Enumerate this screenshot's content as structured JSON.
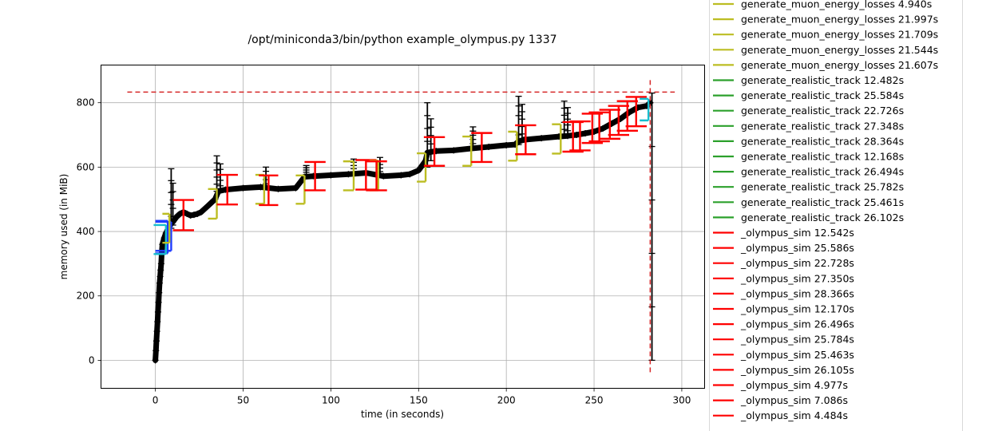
{
  "chart_data": {
    "type": "line",
    "title": "/opt/miniconda3/bin/python example_olympus.py 1337",
    "xlabel": "time (in seconds)",
    "ylabel": "memory used (in MiB)",
    "xlim": [
      -31,
      313
    ],
    "ylim": [
      -87,
      917
    ],
    "x_ticks": [
      0,
      50,
      100,
      150,
      200,
      250,
      300
    ],
    "y_ticks": [
      0,
      200,
      400,
      600,
      800
    ],
    "grid": true,
    "legend_placement": "right, outside plot",
    "max_memory_line": {
      "value": 833,
      "x_start": -16,
      "x_end": 296,
      "vertical_x": 282,
      "color": "#d62728"
    },
    "memory_series": {
      "name": "memory",
      "color": "#000000",
      "marker": "+",
      "x": [
        0,
        0.3,
        0.6,
        0.9,
        1.2,
        1.5,
        1.8,
        2.1,
        2.4,
        2.7,
        3,
        3.3,
        3.6,
        4,
        5,
        6,
        7,
        8,
        9,
        10,
        12,
        14,
        16,
        18,
        20,
        22,
        24,
        26,
        28,
        30,
        32,
        34,
        36,
        40,
        50,
        60,
        70,
        80,
        85,
        90,
        100,
        110,
        120,
        130,
        140,
        145,
        150,
        152,
        154,
        155,
        160,
        170,
        180,
        190,
        200,
        205,
        207,
        210,
        220,
        230,
        235,
        240,
        245,
        250,
        255,
        260,
        265,
        270,
        275,
        280,
        282
      ],
      "y": [
        0,
        30,
        60,
        90,
        120,
        150,
        180,
        210,
        240,
        260,
        280,
        300,
        330,
        360,
        380,
        395,
        405,
        415,
        425,
        430,
        445,
        455,
        460,
        455,
        450,
        452,
        455,
        460,
        470,
        480,
        490,
        500,
        525,
        530,
        535,
        538,
        532,
        535,
        570,
        572,
        575,
        578,
        582,
        572,
        575,
        578,
        590,
        605,
        620,
        645,
        650,
        652,
        658,
        663,
        668,
        670,
        680,
        685,
        690,
        695,
        697,
        700,
        705,
        710,
        720,
        735,
        750,
        770,
        785,
        790,
        800
      ]
    },
    "spikes": [
      {
        "x": 9,
        "y0": 410,
        "y1": 595
      },
      {
        "x": 10,
        "y0": 420,
        "y1": 550
      },
      {
        "x": 35,
        "y0": 525,
        "y1": 635
      },
      {
        "x": 37,
        "y0": 525,
        "y1": 610
      },
      {
        "x": 63,
        "y0": 535,
        "y1": 600
      },
      {
        "x": 86,
        "y0": 570,
        "y1": 605
      },
      {
        "x": 113,
        "y0": 575,
        "y1": 625
      },
      {
        "x": 128,
        "y0": 575,
        "y1": 630
      },
      {
        "x": 155,
        "y0": 600,
        "y1": 800
      },
      {
        "x": 157,
        "y0": 620,
        "y1": 750
      },
      {
        "x": 181,
        "y0": 660,
        "y1": 725
      },
      {
        "x": 207,
        "y0": 670,
        "y1": 820
      },
      {
        "x": 209,
        "y0": 680,
        "y1": 795
      },
      {
        "x": 233,
        "y0": 695,
        "y1": 805
      },
      {
        "x": 235,
        "y0": 695,
        "y1": 785
      },
      {
        "x": 283,
        "y0": 0,
        "y1": 830
      }
    ],
    "brackets": [
      {
        "name": "blue",
        "color": "#1f3cff",
        "x0": 0,
        "x1": 7,
        "lo": 332,
        "hi": 433,
        "tick": 5.5,
        "series": "blue"
      },
      {
        "name": "blue2",
        "color": "#1f3cff",
        "x0": 0,
        "x1": 9,
        "lo": 340,
        "hi": 430,
        "tick": 6,
        "series": "blue"
      },
      {
        "name": "cyan",
        "color": "#17becf",
        "x0": -1,
        "x1": 6,
        "lo": 330,
        "hi": 420,
        "tick": 4.5,
        "series": "cyan"
      },
      {
        "name": "olive",
        "color": "#bcbd22",
        "x0": 4,
        "x1": 8,
        "lo": 365,
        "hi": 455,
        "tick": 3,
        "series": "olive"
      },
      {
        "name": "red",
        "color": "#ff0000",
        "x0": 10,
        "x1": 22,
        "lo": 404,
        "hi": 498,
        "tick": 6,
        "series": "red"
      },
      {
        "name": "olive",
        "color": "#bcbd22",
        "x0": 30,
        "x1": 35,
        "lo": 440,
        "hi": 532,
        "tick": 3,
        "series": "olive"
      },
      {
        "name": "red",
        "color": "#ff0000",
        "x0": 35,
        "x1": 47,
        "lo": 484,
        "hi": 576,
        "tick": 6,
        "series": "red"
      },
      {
        "name": "olive",
        "color": "#bcbd22",
        "x0": 57,
        "x1": 62,
        "lo": 486,
        "hi": 576,
        "tick": 3,
        "series": "olive"
      },
      {
        "name": "red",
        "color": "#ff0000",
        "x0": 59,
        "x1": 70,
        "lo": 482,
        "hi": 574,
        "tick": 6,
        "series": "red"
      },
      {
        "name": "olive",
        "color": "#bcbd22",
        "x0": 80,
        "x1": 85,
        "lo": 486,
        "hi": 574,
        "tick": 3,
        "series": "olive"
      },
      {
        "name": "red",
        "color": "#ff0000",
        "x0": 85,
        "x1": 97,
        "lo": 528,
        "hi": 616,
        "tick": 6,
        "series": "red"
      },
      {
        "name": "olive",
        "color": "#bcbd22",
        "x0": 107,
        "x1": 113,
        "lo": 528,
        "hi": 618,
        "tick": 3,
        "series": "olive"
      },
      {
        "name": "red",
        "color": "#ff0000",
        "x0": 114,
        "x1": 126,
        "lo": 530,
        "hi": 622,
        "tick": 6,
        "series": "red"
      },
      {
        "name": "olive",
        "color": "#bcbd22",
        "x0": 122,
        "x1": 127,
        "lo": 528,
        "hi": 620,
        "tick": 3,
        "series": "olive"
      },
      {
        "name": "red",
        "color": "#ff0000",
        "x0": 120,
        "x1": 132,
        "lo": 528,
        "hi": 618,
        "tick": 6,
        "series": "red"
      },
      {
        "name": "olive",
        "color": "#bcbd22",
        "x0": 149,
        "x1": 154,
        "lo": 555,
        "hi": 643,
        "tick": 3,
        "series": "olive"
      },
      {
        "name": "red",
        "color": "#ff0000",
        "x0": 153,
        "x1": 165,
        "lo": 604,
        "hi": 693,
        "tick": 6,
        "series": "red"
      },
      {
        "name": "olive",
        "color": "#bcbd22",
        "x0": 175,
        "x1": 180,
        "lo": 604,
        "hi": 695,
        "tick": 3,
        "series": "olive"
      },
      {
        "name": "red",
        "color": "#ff0000",
        "x0": 180,
        "x1": 192,
        "lo": 616,
        "hi": 706,
        "tick": 6,
        "series": "red"
      },
      {
        "name": "olive",
        "color": "#bcbd22",
        "x0": 201,
        "x1": 206,
        "lo": 620,
        "hi": 710,
        "tick": 3,
        "series": "olive"
      },
      {
        "name": "red",
        "color": "#ff0000",
        "x0": 205,
        "x1": 217,
        "lo": 640,
        "hi": 730,
        "tick": 6,
        "series": "red"
      },
      {
        "name": "olive",
        "color": "#bcbd22",
        "x0": 226,
        "x1": 231,
        "lo": 642,
        "hi": 733,
        "tick": 3,
        "series": "olive"
      },
      {
        "name": "red",
        "color": "#ff0000",
        "x0": 232,
        "x1": 244,
        "lo": 648,
        "hi": 740,
        "tick": 6,
        "series": "red"
      },
      {
        "name": "red",
        "color": "#ff0000",
        "x0": 236,
        "x1": 248,
        "lo": 652,
        "hi": 742,
        "tick": 6,
        "series": "red"
      },
      {
        "name": "red",
        "color": "#ff0000",
        "x0": 243,
        "x1": 255,
        "lo": 675,
        "hi": 766,
        "tick": 6,
        "series": "red"
      },
      {
        "name": "red",
        "color": "#ff0000",
        "x0": 247,
        "x1": 259,
        "lo": 680,
        "hi": 770,
        "tick": 6,
        "series": "red"
      },
      {
        "name": "red",
        "color": "#ff0000",
        "x0": 253,
        "x1": 265,
        "lo": 688,
        "hi": 778,
        "tick": 6,
        "series": "red"
      },
      {
        "name": "red",
        "color": "#ff0000",
        "x0": 258,
        "x1": 270,
        "lo": 700,
        "hi": 790,
        "tick": 6,
        "series": "red"
      },
      {
        "name": "red",
        "color": "#ff0000",
        "x0": 263,
        "x1": 275,
        "lo": 713,
        "hi": 805,
        "tick": 6,
        "series": "red"
      },
      {
        "name": "red",
        "color": "#ff0000",
        "x0": 268,
        "x1": 280,
        "lo": 727,
        "hi": 818,
        "tick": 6,
        "series": "red"
      },
      {
        "name": "cyan",
        "color": "#17becf",
        "x0": 276,
        "x1": 281,
        "lo": 745,
        "hi": 812,
        "tick": 3,
        "series": "cyan"
      }
    ],
    "legend": [
      {
        "label": "generate_muon_energy_losses 4.940s",
        "color": "#bcbd22"
      },
      {
        "label": "generate_muon_energy_losses 21.997s",
        "color": "#bcbd22"
      },
      {
        "label": "generate_muon_energy_losses 21.709s",
        "color": "#bcbd22"
      },
      {
        "label": "generate_muon_energy_losses 21.544s",
        "color": "#bcbd22"
      },
      {
        "label": "generate_muon_energy_losses 21.607s",
        "color": "#bcbd22"
      },
      {
        "label": "generate_realistic_track 12.482s",
        "color": "#2ca02c"
      },
      {
        "label": "generate_realistic_track 25.584s",
        "color": "#2ca02c"
      },
      {
        "label": "generate_realistic_track 22.726s",
        "color": "#2ca02c"
      },
      {
        "label": "generate_realistic_track 27.348s",
        "color": "#2ca02c"
      },
      {
        "label": "generate_realistic_track 28.364s",
        "color": "#2ca02c"
      },
      {
        "label": "generate_realistic_track 12.168s",
        "color": "#2ca02c"
      },
      {
        "label": "generate_realistic_track 26.494s",
        "color": "#2ca02c"
      },
      {
        "label": "generate_realistic_track 25.782s",
        "color": "#2ca02c"
      },
      {
        "label": "generate_realistic_track 25.461s",
        "color": "#2ca02c"
      },
      {
        "label": "generate_realistic_track 26.102s",
        "color": "#2ca02c"
      },
      {
        "label": "_olympus_sim 12.542s",
        "color": "#ff0000"
      },
      {
        "label": "_olympus_sim 25.586s",
        "color": "#ff0000"
      },
      {
        "label": "_olympus_sim 22.728s",
        "color": "#ff0000"
      },
      {
        "label": "_olympus_sim 27.350s",
        "color": "#ff0000"
      },
      {
        "label": "_olympus_sim 28.366s",
        "color": "#ff0000"
      },
      {
        "label": "_olympus_sim 12.170s",
        "color": "#ff0000"
      },
      {
        "label": "_olympus_sim 26.496s",
        "color": "#ff0000"
      },
      {
        "label": "_olympus_sim 25.784s",
        "color": "#ff0000"
      },
      {
        "label": "_olympus_sim 25.463s",
        "color": "#ff0000"
      },
      {
        "label": "_olympus_sim 26.105s",
        "color": "#ff0000"
      },
      {
        "label": "_olympus_sim 4.977s",
        "color": "#ff0000"
      },
      {
        "label": "_olympus_sim 7.086s",
        "color": "#ff0000"
      },
      {
        "label": "_olympus_sim 4.484s",
        "color": "#ff0000"
      }
    ]
  }
}
